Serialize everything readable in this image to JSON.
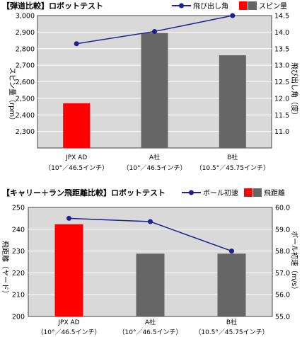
{
  "chart_data": [
    {
      "type": "bar",
      "title": "【弾道比較】ロボットテスト",
      "legend": {
        "line": "飛び出し角",
        "bar": "スピン量",
        "placement": "top-right"
      },
      "categories": [
        "JPX AD",
        "A社",
        "B社"
      ],
      "category_specs": [
        "（10°／46.5インチ）",
        "（10°／46.5インチ）",
        "（10.5°／45.75インチ）"
      ],
      "series": [
        {
          "name": "スピン量",
          "kind": "bar",
          "axis": "left",
          "values": [
            2470,
            2895,
            2760
          ]
        },
        {
          "name": "飛び出し角",
          "kind": "line",
          "axis": "right",
          "values": [
            13.65,
            14.02,
            14.5
          ]
        }
      ],
      "ylabel_left": "スピン量（rpm）",
      "ylabel_right": "飛び出し角（度）",
      "ylim_left": [
        2200,
        3000
      ],
      "yticks_left": [
        "2,300",
        "2,400",
        "2,500",
        "2,600",
        "2,700",
        "2,800",
        "2,900",
        "3,000"
      ],
      "ylim_right": [
        10.5,
        14.5
      ],
      "yticks_right": [
        "11.0",
        "11.5",
        "12.0",
        "12.5",
        "13.0",
        "13.5",
        "14.0",
        "14.5"
      ],
      "grid": true,
      "colors": {
        "highlight": "#ff0000",
        "bar": "#666666",
        "line": "#1f1f8f",
        "background": "#d9d9d9"
      }
    },
    {
      "type": "bar",
      "title": "【キャリー＋ラン飛距離比較】ロボットテスト",
      "legend": {
        "line": "ボール初速",
        "bar": "飛距離",
        "placement": "top-right"
      },
      "categories": [
        "JPX AD",
        "A社",
        "B社"
      ],
      "category_specs": [
        "（10°／46.5インチ）",
        "（10°／46.5インチ）",
        "（10.5°／45.75インチ）"
      ],
      "series": [
        {
          "name": "飛距離",
          "kind": "bar",
          "axis": "left",
          "values": [
            242.3,
            228.8,
            228.8
          ]
        },
        {
          "name": "ボール初速",
          "kind": "line",
          "axis": "right",
          "values": [
            59.5,
            59.35,
            58.0
          ]
        }
      ],
      "ylabel_left": "飛距離（ヤード）",
      "ylabel_right": "ボール初速（m/s）",
      "ylim_left": [
        200,
        250
      ],
      "yticks_left": [
        "200",
        "210",
        "220",
        "230",
        "240",
        "250"
      ],
      "ylim_right": [
        55.0,
        60.0
      ],
      "yticks_right": [
        "55.0",
        "56.0",
        "57.0",
        "58.0",
        "59.0",
        "60.0"
      ],
      "grid": true,
      "colors": {
        "highlight": "#ff0000",
        "bar": "#666666",
        "line": "#1f1f8f",
        "background": "#d9d9d9"
      }
    }
  ]
}
